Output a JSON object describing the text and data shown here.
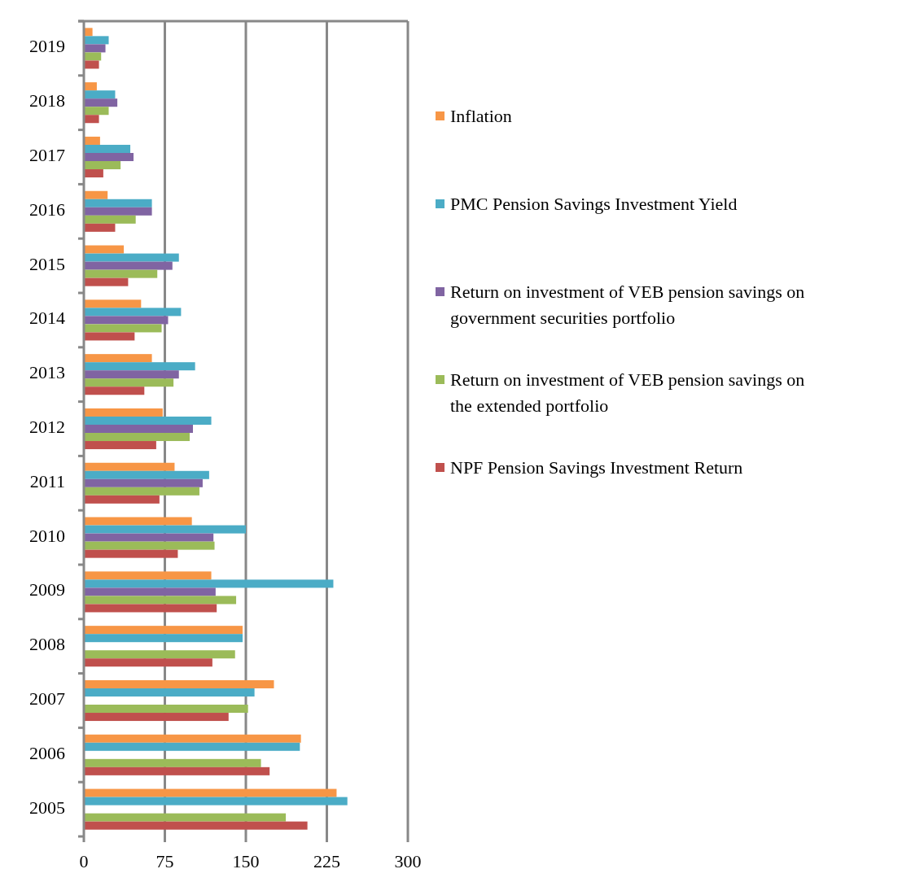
{
  "chart_data": {
    "type": "bar",
    "orientation": "horizontal",
    "categories": [
      "2019",
      "2018",
      "2017",
      "2016",
      "2015",
      "2014",
      "2013",
      "2012",
      "2011",
      "2010",
      "2009",
      "2008",
      "2007",
      "2006",
      "2005"
    ],
    "series": [
      {
        "name": "Inflation",
        "color": "#f79646",
        "values": [
          8,
          12,
          15,
          22,
          37,
          53,
          63,
          73,
          84,
          100,
          118,
          147,
          176,
          201,
          234
        ]
      },
      {
        "name": "PMC Pension Savings Investment Yield",
        "color": "#4bacc6",
        "values": [
          23,
          29,
          43,
          63,
          88,
          90,
          103,
          118,
          116,
          150,
          231,
          147,
          158,
          200,
          244
        ]
      },
      {
        "name": "Return on investment of VEB pension savings on government securities portfolio",
        "color": "#8064a2",
        "values": [
          20,
          31,
          46,
          63,
          82,
          78,
          88,
          101,
          110,
          120,
          122,
          null,
          null,
          null,
          null
        ]
      },
      {
        "name": "Return on investment of VEB pension savings on the extended portfolio",
        "color": "#9bbb59",
        "values": [
          16,
          23,
          34,
          48,
          68,
          72,
          83,
          98,
          107,
          121,
          141,
          140,
          152,
          164,
          187
        ]
      },
      {
        "name": "NPF Pension Savings Investment Return",
        "color": "#c0504d",
        "values": [
          14,
          14,
          18,
          29,
          41,
          47,
          56,
          67,
          70,
          87,
          123,
          119,
          134,
          172,
          207
        ]
      }
    ],
    "xlim": [
      0,
      300
    ],
    "xticks": [
      0,
      75,
      150,
      225,
      300
    ],
    "grid": "x",
    "legend": "right"
  }
}
